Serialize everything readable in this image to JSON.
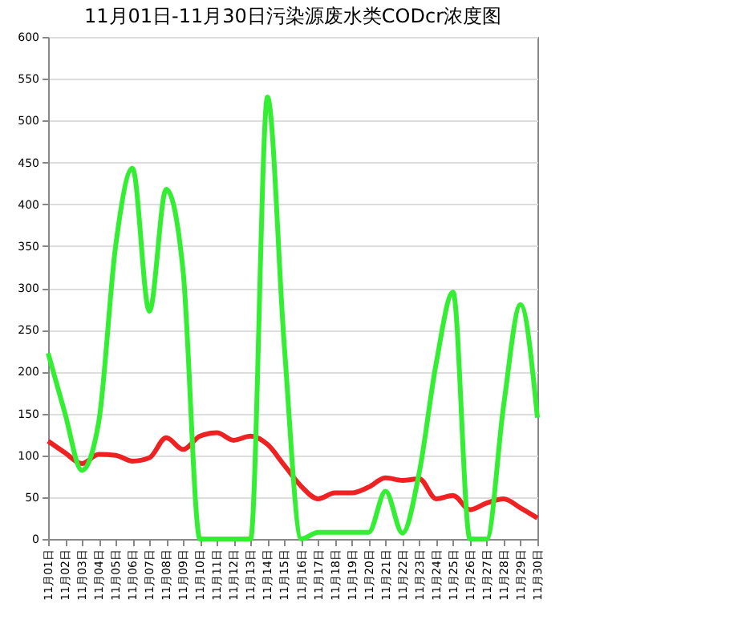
{
  "chart_data": {
    "type": "line",
    "title": "11月01日-11月30日污染源废水类CODcr浓度图",
    "categories": [
      "11月01日",
      "11月02日",
      "11月03日",
      "11月04日",
      "11月05日",
      "11月06日",
      "11月07日",
      "11月08日",
      "11月09日",
      "11月10日",
      "11月11日",
      "11月12日",
      "11月13日",
      "11月14日",
      "11月15日",
      "11月16日",
      "11月17日",
      "11月18日",
      "11月19日",
      "11月20日",
      "11月21日",
      "11月22日",
      "11月23日",
      "11月24日",
      "11月25日",
      "11月26日",
      "11月27日",
      "11月28日",
      "11月29日",
      "11月30日"
    ],
    "series": [
      {
        "color": "#ee2222",
        "values": [
          117,
          103,
          90,
          101,
          100,
          93,
          97,
          121,
          107,
          123,
          127,
          118,
          123,
          113,
          88,
          63,
          48,
          55,
          55,
          62,
          73,
          70,
          72,
          48,
          52,
          35,
          43,
          48,
          37,
          25
        ]
      },
      {
        "color": "#33ee33",
        "values": [
          222,
          150,
          82,
          140,
          350,
          443,
          272,
          418,
          320,
          0,
          0,
          0,
          0,
          528,
          230,
          0,
          8,
          8,
          8,
          8,
          57,
          7,
          80,
          210,
          295,
          0,
          0,
          160,
          280,
          145
        ]
      }
    ],
    "ylim": [
      0,
      600
    ],
    "yticks": [
      0,
      50,
      100,
      150,
      200,
      250,
      300,
      350,
      400,
      450,
      500,
      550,
      600
    ],
    "grid": "y",
    "legend": false,
    "marker": "none",
    "line_style": "solid"
  }
}
